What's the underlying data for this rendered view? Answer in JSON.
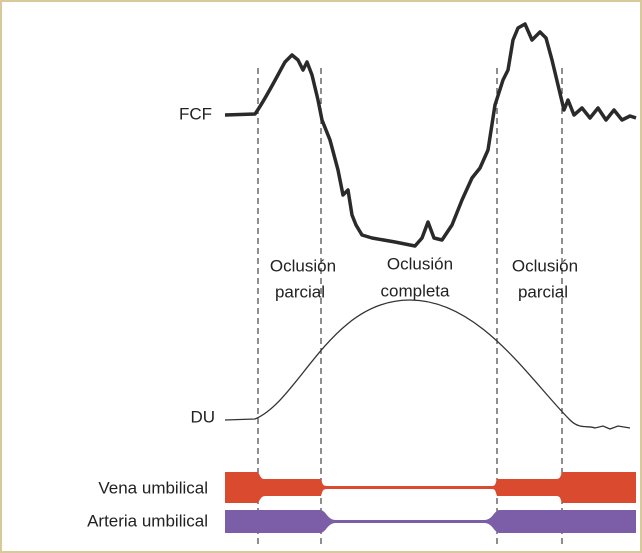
{
  "labels": {
    "fcf": "FCF",
    "du": "DU"
  },
  "regions": [
    {
      "lines": [
        "Oclusión",
        "parcial"
      ]
    },
    {
      "lines": [
        "Oclusión",
        "completa"
      ]
    },
    {
      "lines": [
        "Oclusión",
        "parcial"
      ]
    }
  ],
  "vessels": [
    "Vena umbilical",
    "Arteria umbilical"
  ]
}
